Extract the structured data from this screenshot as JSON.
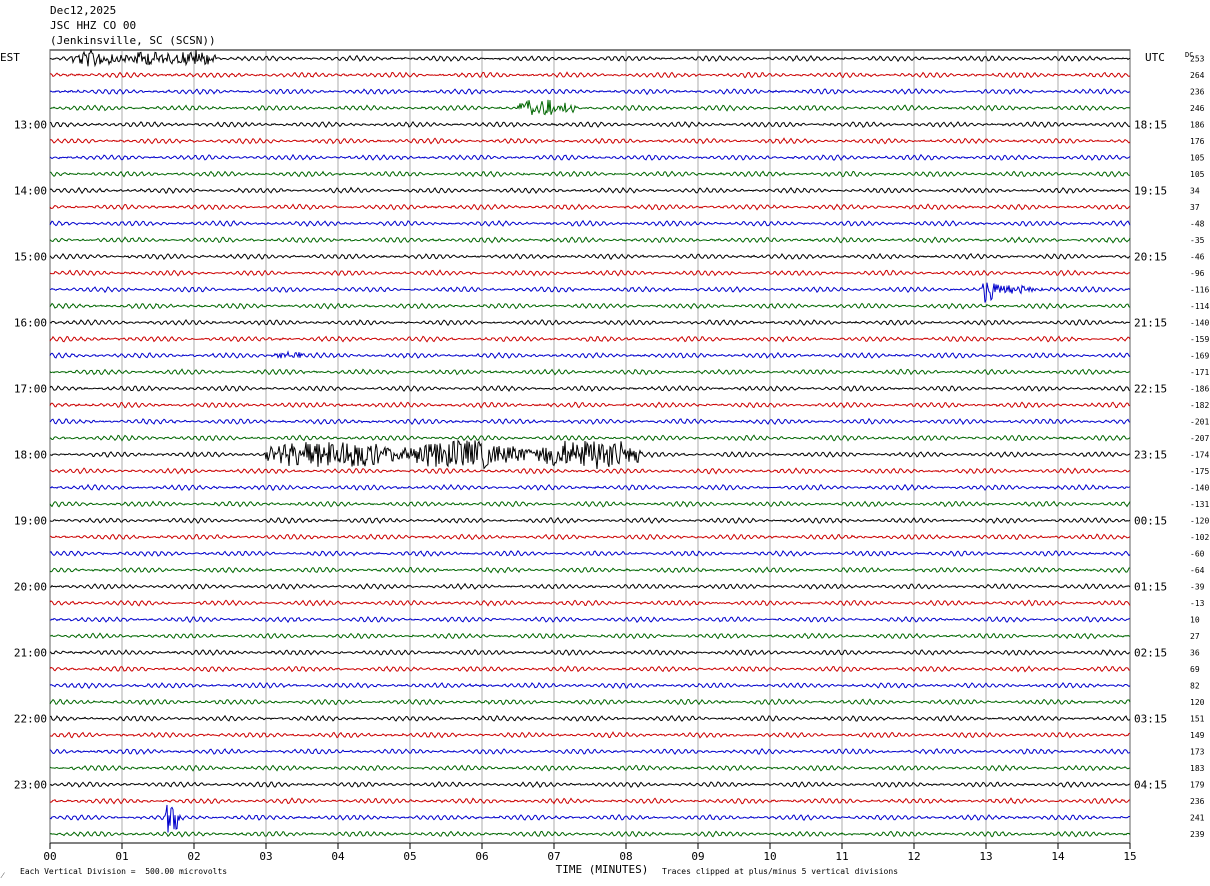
{
  "header": {
    "date": "Dec12,2025",
    "station": "JSC HHZ CO 00",
    "location": "(Jenkinsville, SC (SCSN))"
  },
  "chart_data": {
    "type": "line",
    "title": "Dec12,2025 JSC HHZ CO 00 (Jenkinsville, SC (SCSN))",
    "xlabel": "TIME (MINUTES)",
    "x_ticks": [
      "00",
      "01",
      "02",
      "03",
      "04",
      "05",
      "06",
      "07",
      "08",
      "09",
      "10",
      "11",
      "12",
      "13",
      "14",
      "15"
    ],
    "xlim": [
      0,
      15
    ],
    "left_axis_label": "EST",
    "right_axis_label": "UTC",
    "dc_label": "DC",
    "hours_left": [
      "13:00",
      "14:00",
      "15:00",
      "16:00",
      "17:00",
      "18:00",
      "19:00",
      "20:00",
      "21:00",
      "22:00",
      "23:00"
    ],
    "hours_right": [
      "18:15",
      "19:15",
      "20:15",
      "21:15",
      "22:15",
      "23:15",
      "00:15",
      "01:15",
      "02:15",
      "03:15",
      "04:15"
    ],
    "trace_colors": [
      "#000000",
      "#cc0000",
      "#0000cc",
      "#006600"
    ],
    "dc_values": [
      253,
      264,
      236,
      246,
      186,
      176,
      105,
      105,
      34,
      37,
      -48,
      -35,
      -46,
      -96,
      -116,
      -114,
      -140,
      -159,
      -169,
      -171,
      -186,
      -182,
      -201,
      -207,
      -174,
      -175,
      -140,
      -131,
      -120,
      -102,
      -60,
      -64,
      -39,
      -13,
      10,
      27,
      36,
      69,
      82,
      120,
      151,
      149,
      173,
      183,
      179,
      236,
      241,
      239
    ],
    "events": [
      {
        "trace": 0,
        "start_min": 0.3,
        "end_min": 2.3,
        "amplitude": "moderate"
      },
      {
        "trace": 3,
        "start_min": 6.5,
        "end_min": 7.3,
        "amplitude": "moderate"
      },
      {
        "trace": 14,
        "start_min": 12.95,
        "end_min": 14.0,
        "amplitude": "large"
      },
      {
        "trace": 18,
        "start_min": 3.1,
        "end_min": 3.5,
        "amplitude": "small"
      },
      {
        "trace": 24,
        "start_min": 3.0,
        "end_min": 8.2,
        "amplitude": "large"
      },
      {
        "trace": 46,
        "start_min": 1.6,
        "end_min": 1.8,
        "amplitude": "large"
      }
    ]
  },
  "footer": {
    "scale_note": "Each Vertical Division =  500.00 microvolts",
    "clip_note": "Traces clipped at plus/minus 5 vertical divisions",
    "corner_mark": "⁄"
  }
}
